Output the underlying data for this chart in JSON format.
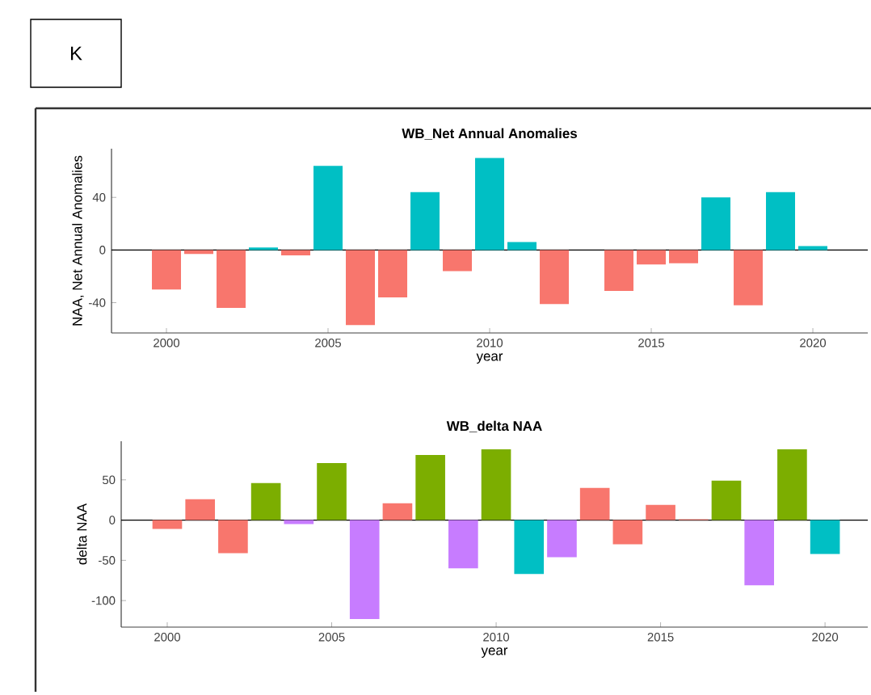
{
  "chart_data": [
    {
      "type": "bar",
      "title": "WB_Net Annual Anomalies",
      "xlabel": "year",
      "ylabel": "NAA, Net Annual Anomalies",
      "annotations": [
        "K"
      ],
      "x": [
        2000,
        2001,
        2002,
        2003,
        2004,
        2005,
        2006,
        2007,
        2008,
        2009,
        2010,
        2011,
        2012,
        2013,
        2014,
        2015,
        2016,
        2017,
        2018,
        2019,
        2020
      ],
      "values": [
        -30,
        -3,
        -44,
        2,
        -4,
        64,
        -57,
        -36,
        44,
        -16,
        70,
        6,
        -41,
        0,
        -31,
        -11,
        -10,
        40,
        -42,
        44,
        3
      ],
      "colors": [
        "#f8766d",
        "#f8766d",
        "#f8766d",
        "#00bfc4",
        "#f8766d",
        "#00bfc4",
        "#f8766d",
        "#f8766d",
        "#00bfc4",
        "#f8766d",
        "#00bfc4",
        "#00bfc4",
        "#f8766d",
        "#f8766d",
        "#f8766d",
        "#f8766d",
        "#f8766d",
        "#00bfc4",
        "#f8766d",
        "#00bfc4",
        "#00bfc4"
      ],
      "xlim": [
        1998.3,
        2021.7
      ],
      "ylim": [
        -63,
        77
      ],
      "xticks": [
        2000,
        2005,
        2010,
        2015,
        2020
      ],
      "yticks": [
        -40,
        0,
        40
      ],
      "ref_lines": [
        {
          "axis": "y",
          "value": 0
        }
      ]
    },
    {
      "type": "bar",
      "title": "WB_delta NAA",
      "xlabel": "year",
      "ylabel": "delta NAA",
      "x": [
        2000,
        2001,
        2002,
        2003,
        2004,
        2005,
        2006,
        2007,
        2008,
        2009,
        2010,
        2011,
        2012,
        2013,
        2014,
        2015,
        2016,
        2017,
        2018,
        2019,
        2020
      ],
      "values": [
        -11,
        26,
        -41,
        46,
        -5,
        71,
        -123,
        21,
        81,
        -60,
        88,
        -67,
        -46,
        40,
        -30,
        19,
        1,
        49,
        -81,
        88,
        -42
      ],
      "colors": [
        "#f8766d",
        "#f8766d",
        "#f8766d",
        "#7cae00",
        "#c77cff",
        "#7cae00",
        "#c77cff",
        "#f8766d",
        "#7cae00",
        "#c77cff",
        "#7cae00",
        "#00bfc4",
        "#c77cff",
        "#f8766d",
        "#f8766d",
        "#f8766d",
        "#f8766d",
        "#7cae00",
        "#c77cff",
        "#7cae00",
        "#00bfc4"
      ],
      "xlim": [
        1998.6,
        2021.3
      ],
      "ylim": [
        -133,
        98
      ],
      "xticks": [
        2000,
        2005,
        2010,
        2015,
        2020
      ],
      "yticks": [
        -100,
        -50,
        0,
        50
      ],
      "ref_lines": [
        {
          "axis": "y",
          "value": 0
        }
      ]
    }
  ]
}
